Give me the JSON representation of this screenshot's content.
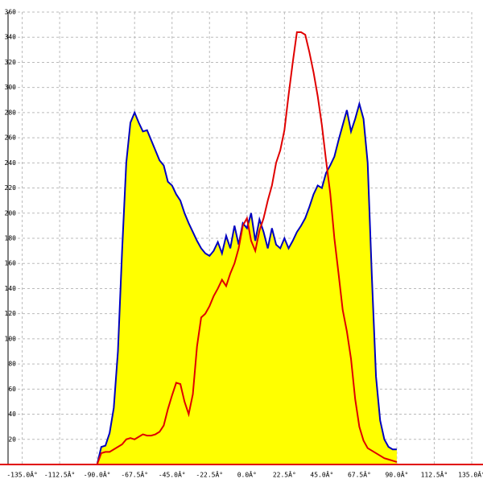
{
  "chart_data": {
    "type": "area",
    "x": [
      -90,
      -87.5,
      -85,
      -82.5,
      -80,
      -77.5,
      -75,
      -72.5,
      -70,
      -67.5,
      -65,
      -62.5,
      -60,
      -57.5,
      -55,
      -52.5,
      -50,
      -47.5,
      -45,
      -42.5,
      -40,
      -37.5,
      -35,
      -32.5,
      -30,
      -27.5,
      -25,
      -22.5,
      -20,
      -17.5,
      -15,
      -12.5,
      -10,
      -7.5,
      -5,
      -2.5,
      0,
      2.5,
      5,
      7.5,
      10,
      12.5,
      15,
      17.5,
      20,
      22.5,
      25,
      27.5,
      30,
      32.5,
      35,
      37.5,
      40,
      42.5,
      45,
      47.5,
      50,
      52.5,
      55,
      57.5,
      60,
      62.5,
      65,
      67.5,
      70,
      72.5,
      75,
      77.5,
      80,
      82.5,
      85,
      87.5,
      90
    ],
    "series": [
      {
        "color": "#0000c0",
        "fill": "#ffff00",
        "values": [
          0,
          14,
          15,
          25,
          45,
          90,
          170,
          240,
          272,
          280,
          272,
          265,
          266,
          258,
          250,
          242,
          238,
          225,
          222,
          215,
          210,
          200,
          192,
          185,
          178,
          172,
          168,
          166,
          170,
          177,
          168,
          182,
          172,
          190,
          175,
          192,
          188,
          200,
          178,
          195,
          185,
          172,
          188,
          175,
          172,
          180,
          172,
          178,
          185,
          190,
          196,
          205,
          215,
          222,
          220,
          232,
          238,
          245,
          258,
          270,
          282,
          265,
          275,
          287,
          275,
          240,
          150,
          70,
          35,
          20,
          14,
          12,
          12
        ]
      },
      {
        "color": "#e00000",
        "values": [
          0,
          9,
          10,
          10,
          12,
          14,
          16,
          20,
          21,
          20,
          22,
          24,
          23,
          23,
          24,
          26,
          31,
          44,
          55,
          65,
          64,
          50,
          40,
          56,
          94,
          117,
          120,
          126,
          134,
          140,
          147,
          142,
          152,
          160,
          172,
          190,
          196,
          178,
          170,
          186,
          196,
          210,
          222,
          240,
          250,
          266,
          294,
          320,
          344,
          344,
          342,
          328,
          312,
          293,
          270,
          242,
          216,
          180,
          152,
          123,
          106,
          84,
          52,
          30,
          19,
          13,
          11,
          9,
          7,
          5,
          4,
          3,
          2
        ]
      }
    ],
    "xlim": [
      -143.5,
      135
    ],
    "ylim": [
      0,
      360
    ],
    "xticks": [
      {
        "value": -135,
        "label": "-135.0Â°"
      },
      {
        "value": -112.5,
        "label": "-112.5Â°"
      },
      {
        "value": -90,
        "label": "-90.0Â°"
      },
      {
        "value": -67.5,
        "label": "-67.5Â°"
      },
      {
        "value": -45,
        "label": "-45.0Â°"
      },
      {
        "value": -22.5,
        "label": "-22.5Â°"
      },
      {
        "value": 0,
        "label": "0.0Â°"
      },
      {
        "value": 22.5,
        "label": "22.5Â°"
      },
      {
        "value": 45,
        "label": "45.0Â°"
      },
      {
        "value": 67.5,
        "label": "67.5Â°"
      },
      {
        "value": 90,
        "label": "90.0Â°"
      },
      {
        "value": 112.5,
        "label": "112.5Â°"
      },
      {
        "value": 135,
        "label": "135.0Â°"
      }
    ],
    "yticks": [
      20,
      40,
      60,
      80,
      100,
      120,
      140,
      160,
      180,
      200,
      220,
      240,
      260,
      280,
      300,
      320,
      340,
      360
    ],
    "grid": true,
    "axis_color": "#e00000"
  }
}
